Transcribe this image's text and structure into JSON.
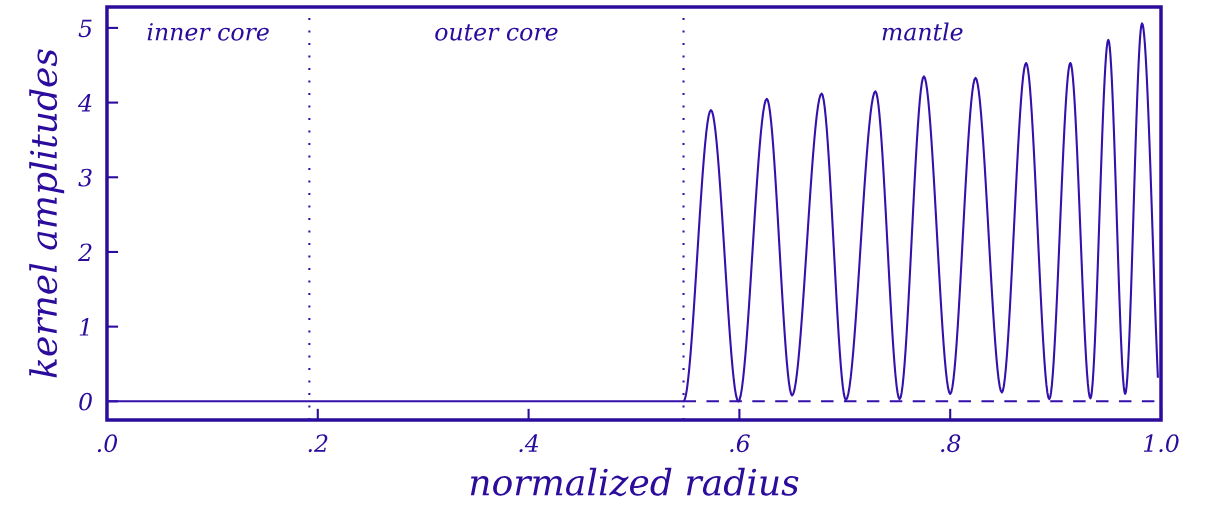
{
  "chart_data": {
    "type": "line",
    "xlabel": "normalized radius",
    "ylabel": "kernel amplitudes",
    "xlim": [
      0,
      1.0
    ],
    "ylim": [
      -0.25,
      5.28
    ],
    "xticks": [
      {
        "value": 0,
        "label": ".0"
      },
      {
        "value": 0.2,
        "label": ".2"
      },
      {
        "value": 0.4,
        "label": ".4"
      },
      {
        "value": 0.6,
        "label": ".6"
      },
      {
        "value": 0.8,
        "label": ".8"
      },
      {
        "value": 1.0,
        "label": "1.0"
      }
    ],
    "yticks": [
      0,
      1,
      2,
      3,
      4,
      5
    ],
    "grid": false,
    "line_style": "solid",
    "series": [
      {
        "color": "#3311aa",
        "x": [
          0,
          0.547,
          0.573,
          0.599,
          0.626,
          0.65,
          0.678,
          0.701,
          0.729,
          0.752,
          0.775,
          0.8,
          0.824,
          0.849,
          0.872,
          0.894,
          0.914,
          0.933,
          0.95,
          0.966,
          0.982,
          0.997
        ],
        "values": [
          0,
          0,
          3.9,
          0,
          4.05,
          0.08,
          4.12,
          0.02,
          4.15,
          0.03,
          4.35,
          0.1,
          4.33,
          0.12,
          4.53,
          0.03,
          4.53,
          0.04,
          4.84,
          0.1,
          5.06,
          0.33
        ]
      },
      {
        "color": "#3311aa",
        "line_style": "dashed",
        "x": [
          0.547,
          1.0
        ],
        "values": [
          0,
          0
        ]
      }
    ],
    "ref_lines": [
      {
        "axis": "x",
        "value": 0.192,
        "line_style": "dotted",
        "color": "#3311aa"
      },
      {
        "axis": "x",
        "value": 0.547,
        "line_style": "dotted",
        "color": "#3311aa"
      }
    ],
    "annotations": [
      "inner core",
      "outer core",
      "mantle"
    ]
  }
}
